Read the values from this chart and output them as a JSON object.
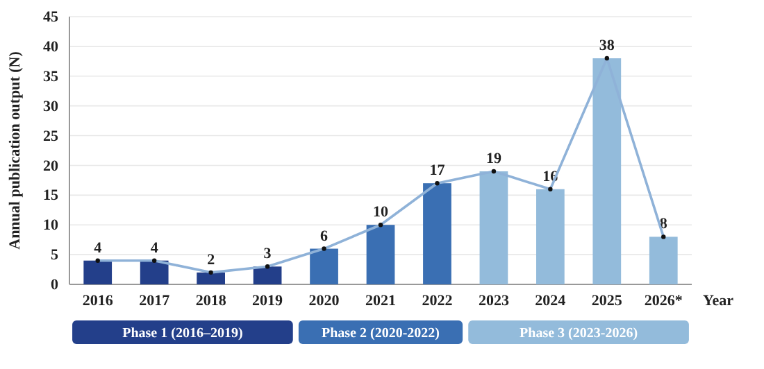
{
  "chart_data": {
    "type": "bar",
    "categories": [
      "2016",
      "2017",
      "2018",
      "2019",
      "2020",
      "2021",
      "2022",
      "2023",
      "2024",
      "2025",
      "2026*"
    ],
    "series": [
      {
        "colors": [
          "#233f8a",
          "#233f8a",
          "#233f8a",
          "#233f8a",
          "#3a6fb3",
          "#3a6fb3",
          "#3a6fb3",
          "#93bbdb",
          "#93bbdb",
          "#93bbdb",
          "#93bbdb"
        ],
        "values": [
          4,
          4,
          2,
          3,
          6,
          10,
          17,
          19,
          16,
          38,
          8
        ],
        "value_labels": [
          "4",
          "4",
          "2",
          "3",
          "6",
          "10",
          "17",
          "19",
          "16",
          "38",
          "8"
        ]
      },
      {
        "type": "line",
        "color": "#8fb2d8",
        "marker": "circle",
        "values": [
          4,
          4,
          2,
          3,
          6,
          10,
          17,
          19,
          16,
          38,
          8
        ]
      }
    ],
    "ylabel": "Annual publication output (N)",
    "xlabel": "Year",
    "ylim": [
      0,
      45
    ],
    "yticks": [
      0,
      5,
      10,
      15,
      20,
      25,
      30,
      35,
      40,
      45
    ],
    "grid": "y",
    "annotations": [
      "Phase 1 (2016–2019)",
      "Phase 2 (2020-2022)",
      "Phase 3 (2023-2026)"
    ]
  }
}
